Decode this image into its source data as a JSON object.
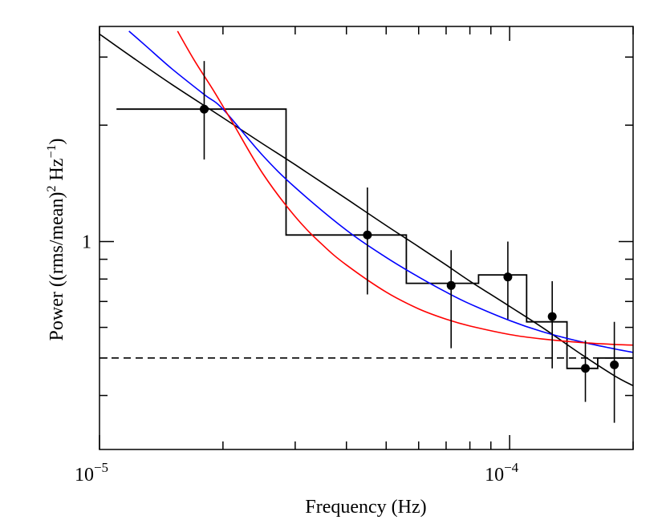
{
  "chart_data": {
    "type": "scatter",
    "title": "",
    "xlabel": "Frequency (Hz)",
    "ylabel_parts": {
      "a": "Power ((rms/mean)",
      "sup1": "2",
      "b": " Hz",
      "sup2": "−1",
      "c": ")"
    },
    "xscale": "log",
    "yscale": "log",
    "xlim": [
      1e-05,
      0.0002
    ],
    "ylim": [
      0.29,
      3.6
    ],
    "x_tick_labels": [
      {
        "value": 1e-05,
        "base": "10",
        "exp": "−5"
      },
      {
        "value": 0.0001,
        "base": "10",
        "exp": "−4"
      }
    ],
    "y_tick_labels": [
      {
        "value": 1.0,
        "label": "1"
      }
    ],
    "x_minor_ticks": [
      2e-05,
      3e-05,
      4e-05,
      5e-05,
      6e-05,
      7e-05,
      8e-05,
      9e-05,
      0.0002
    ],
    "y_minor_ticks": [
      0.4,
      0.5,
      0.6,
      0.7,
      0.8,
      0.9,
      2,
      3
    ],
    "data_points": [
      {
        "x": 1.8e-05,
        "y": 2.2,
        "y_low": 1.63,
        "y_high": 2.93
      },
      {
        "x": 4.5e-05,
        "y": 1.04,
        "y_low": 0.73,
        "y_high": 1.38
      },
      {
        "x": 7.2e-05,
        "y": 0.77,
        "y_low": 0.53,
        "y_high": 0.95
      },
      {
        "x": 9.9e-05,
        "y": 0.81,
        "y_low": 0.63,
        "y_high": 1.0
      },
      {
        "x": 0.000127,
        "y": 0.64,
        "y_low": 0.47,
        "y_high": 0.79
      },
      {
        "x": 0.000153,
        "y": 0.47,
        "y_low": 0.385,
        "y_high": 0.555
      },
      {
        "x": 0.00018,
        "y": 0.48,
        "y_low": 0.34,
        "y_high": 0.62
      }
    ],
    "series": [
      {
        "name": "binned power (histogram)",
        "style": "step",
        "color": "#000000",
        "bin_edges": [
          1.1e-05,
          2.85e-05,
          5.6e-05,
          8.4e-05,
          0.00011,
          0.000138,
          0.000164,
          0.0002
        ],
        "values": [
          2.2,
          1.04,
          0.78,
          0.82,
          0.62,
          0.47,
          0.5
        ]
      },
      {
        "name": "power-law fit",
        "style": "line",
        "color": "#000000",
        "x": [
          1e-05,
          1.2e-05,
          1.5e-05,
          2e-05,
          2.5e-05,
          3e-05,
          4e-05,
          5e-05,
          6e-05,
          7e-05,
          8e-05,
          0.0001,
          0.00012,
          0.00015,
          0.00018,
          0.0002
        ],
        "y": [
          3.44,
          3.0,
          2.55,
          2.09,
          1.79,
          1.58,
          1.29,
          1.1,
          0.97,
          0.87,
          0.79,
          0.68,
          0.6,
          0.51,
          0.45,
          0.424
        ]
      },
      {
        "name": "blue model",
        "style": "line",
        "color": "#0000ff",
        "x": [
          1.18e-05,
          1.3e-05,
          1.5e-05,
          1.8e-05,
          2e-05,
          2.5e-05,
          3e-05,
          4e-05,
          5e-05,
          6e-05,
          7e-05,
          8e-05,
          0.0001,
          0.00012,
          0.00015,
          0.00018,
          0.0002
        ],
        "y": [
          3.5,
          3.2,
          2.8,
          2.4,
          2.2,
          1.67,
          1.38,
          1.07,
          0.91,
          0.81,
          0.74,
          0.69,
          0.625,
          0.585,
          0.55,
          0.528,
          0.517
        ]
      },
      {
        "name": "red model",
        "style": "line",
        "color": "#ff0000",
        "x": [
          1.55e-05,
          1.7e-05,
          1.9e-05,
          2.1e-05,
          2.5e-05,
          3e-05,
          3.5e-05,
          4e-05,
          5e-05,
          6e-05,
          7e-05,
          8e-05,
          0.0001,
          0.00012,
          0.00015,
          0.00018,
          0.0002
        ],
        "y": [
          3.5,
          2.95,
          2.45,
          2.05,
          1.5,
          1.16,
          0.98,
          0.87,
          0.74,
          0.67,
          0.63,
          0.605,
          0.575,
          0.56,
          0.548,
          0.542,
          0.54
        ]
      },
      {
        "name": "constant level (dashed)",
        "style": "dashed",
        "color": "#000000",
        "y_const": 0.5
      }
    ]
  }
}
